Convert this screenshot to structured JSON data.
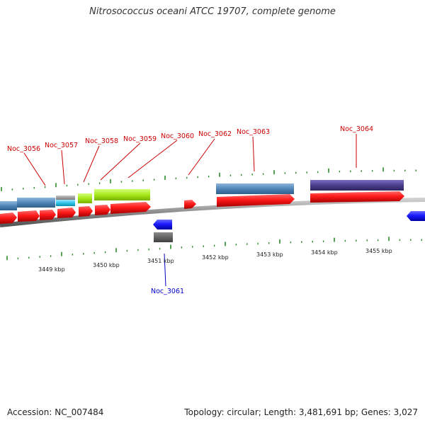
{
  "title": "Nitrosococcus oceani ATCC 19707, complete genome",
  "footer": {
    "accession": "Accession: NC_007484",
    "stats": "Topology: circular; Length: 3,481,691 bp; Genes: 3,027"
  },
  "colors": {
    "cds": "#ff1a1a",
    "cds_minus": "#1a1aff",
    "label_plus": "#cc0000",
    "label_minus": "#0000cc",
    "cog_steel": "#4f86b8",
    "cog_cyan": "#2ec4e8",
    "cog_grey": "#9a9a9a",
    "cog_lime": "#a6e81a",
    "cog_purple": "#4a3e8c",
    "cog_dark": "#606060",
    "backbone": "#888888",
    "tick": "#2e8b2e"
  },
  "scale_labels": [
    "3449 kbp",
    "3450 kbp",
    "3451 kbp",
    "3452 kbp",
    "3453 kbp",
    "3454 kbp",
    "3455 kbp"
  ],
  "gene_labels": [
    {
      "id": "noc3056",
      "text": "Noc_3056",
      "strand": "plus"
    },
    {
      "id": "noc3057",
      "text": "Noc_3057",
      "strand": "plus"
    },
    {
      "id": "noc3058",
      "text": "Noc_3058",
      "strand": "plus"
    },
    {
      "id": "noc3059",
      "text": "Noc_3059",
      "strand": "plus"
    },
    {
      "id": "noc3060",
      "text": "Noc_3060",
      "strand": "plus"
    },
    {
      "id": "noc3062",
      "text": "Noc_3062",
      "strand": "plus"
    },
    {
      "id": "noc3063",
      "text": "Noc_3063",
      "strand": "plus"
    },
    {
      "id": "noc3064",
      "text": "Noc_3064",
      "strand": "plus"
    },
    {
      "id": "noc3061",
      "text": "Noc_3061",
      "strand": "minus"
    }
  ]
}
